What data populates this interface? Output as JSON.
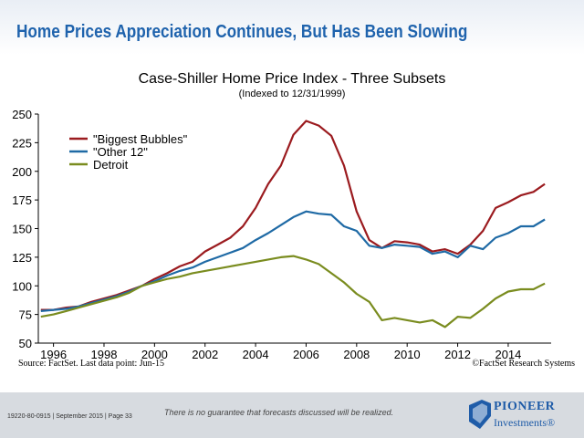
{
  "slide": {
    "title": "Home Prices Appreciation Continues, But Has Been Slowing",
    "footer_code": "19220-80-0915 | September 2015 | Page 33",
    "disclaimer": "There is no guarantee that forecasts discussed will be realized.",
    "logo_name": "PIONEER",
    "logo_sub": "Investments®"
  },
  "colors": {
    "title": "#1f63ad",
    "footer": "#d7dbe0",
    "biggest": "#9b1b1f",
    "other": "#1f6aa5",
    "detroit": "#7a8c1f"
  },
  "chart_data": {
    "type": "line",
    "title": "Case-Shiller Home Price Index - Three Subsets",
    "subtitle": "(Indexed to 12/31/1999)",
    "xlim": [
      1995.4,
      2015.7
    ],
    "ylim": [
      50,
      250
    ],
    "y_ticks": [
      50,
      75,
      100,
      125,
      150,
      175,
      200,
      225,
      250
    ],
    "x_ticks": [
      1996,
      1998,
      2000,
      2002,
      2004,
      2006,
      2008,
      2010,
      2012,
      2014
    ],
    "x_tick_labels": [
      "1996",
      "1998",
      "2000",
      "2002",
      "2004",
      "2006",
      "2008",
      "2010",
      "2012",
      "2014"
    ],
    "legend_position": "top-left",
    "grid": false,
    "source": "Source: FactSet. Last data point: Jun-15",
    "copyright": "©FactSet Research Systems",
    "series": [
      {
        "name": "\"Biggest Bubbles\"",
        "color": "#9b1b1f",
        "x": [
          1995.5,
          1996,
          1996.5,
          1997,
          1997.5,
          1998,
          1998.5,
          1999,
          1999.5,
          2000,
          2000.5,
          2001,
          2001.5,
          2002,
          2002.5,
          2003,
          2003.5,
          2004,
          2004.5,
          2005,
          2005.5,
          2006,
          2006.5,
          2007,
          2007.5,
          2008,
          2008.5,
          2009,
          2009.5,
          2010,
          2010.5,
          2011,
          2011.5,
          2012,
          2012.5,
          2013,
          2013.5,
          2014,
          2014.5,
          2015,
          2015.45
        ],
        "y": [
          79,
          79,
          81,
          82,
          86,
          89,
          92,
          96,
          100,
          106,
          111,
          117,
          121,
          130,
          136,
          142,
          152,
          168,
          189,
          205,
          232,
          244,
          240,
          231,
          205,
          165,
          140,
          133,
          139,
          138,
          136,
          130,
          132,
          128,
          136,
          148,
          168,
          173,
          179,
          182,
          189
        ]
      },
      {
        "name": "\"Other 12\"",
        "color": "#1f6aa5",
        "x": [
          1995.5,
          1996,
          1996.5,
          1997,
          1997.5,
          1998,
          1998.5,
          1999,
          1999.5,
          2000,
          2000.5,
          2001,
          2001.5,
          2002,
          2002.5,
          2003,
          2003.5,
          2004,
          2004.5,
          2005,
          2005.5,
          2006,
          2006.5,
          2007,
          2007.5,
          2008,
          2008.5,
          2009,
          2009.5,
          2010,
          2010.5,
          2011,
          2011.5,
          2012,
          2012.5,
          2013,
          2013.5,
          2014,
          2014.5,
          2015,
          2015.45
        ],
        "y": [
          78,
          79,
          80,
          82,
          85,
          88,
          91,
          95,
          100,
          104,
          109,
          113,
          116,
          121,
          125,
          129,
          133,
          140,
          146,
          153,
          160,
          165,
          163,
          162,
          152,
          148,
          135,
          133,
          136,
          135,
          134,
          128,
          130,
          125,
          135,
          132,
          142,
          146,
          152,
          152,
          158
        ]
      },
      {
        "name": "Detroit",
        "color": "#7a8c1f",
        "x": [
          1995.5,
          1996,
          1996.5,
          1997,
          1997.5,
          1998,
          1998.5,
          1999,
          1999.5,
          2000,
          2000.5,
          2001,
          2001.5,
          2002,
          2002.5,
          2003,
          2003.5,
          2004,
          2004.5,
          2005,
          2005.5,
          2006,
          2006.5,
          2007,
          2007.5,
          2008,
          2008.5,
          2009,
          2009.5,
          2010,
          2010.5,
          2011,
          2011.5,
          2012,
          2012.5,
          2013,
          2013.5,
          2014,
          2014.5,
          2015,
          2015.45
        ],
        "y": [
          73,
          75,
          78,
          81,
          84,
          87,
          90,
          94,
          100,
          103,
          106,
          108,
          111,
          113,
          115,
          117,
          119,
          121,
          123,
          125,
          126,
          123,
          119,
          111,
          103,
          93,
          86,
          70,
          72,
          70,
          68,
          70,
          64,
          73,
          72,
          80,
          89,
          95,
          97,
          97,
          102
        ]
      }
    ]
  }
}
